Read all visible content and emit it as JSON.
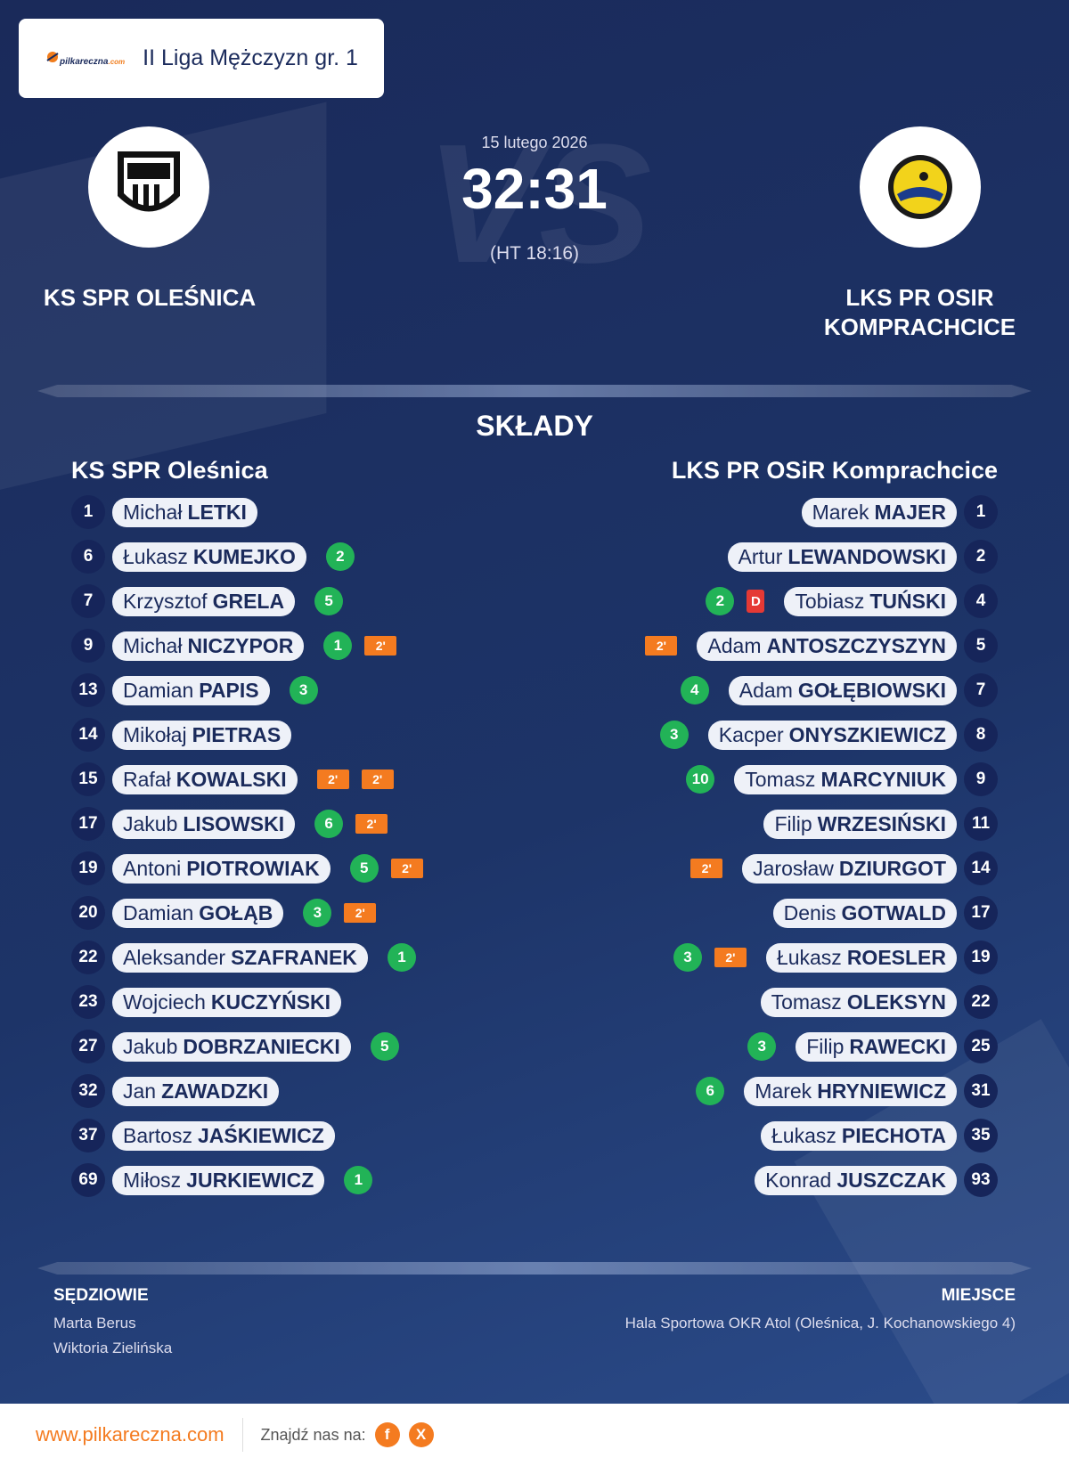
{
  "header": {
    "logo_text": "pilkareczna",
    "logo_suffix": ".com",
    "league": "II Liga Mężczyzn gr. 1"
  },
  "match": {
    "date": "15 lutego 2026",
    "score": "32:31",
    "halftime": "(HT 18:16)",
    "watermark": "VS"
  },
  "home": {
    "name": "KS SPR OLEŚNICA"
  },
  "away": {
    "name": "LKS PR OSIR KOMPRACHCICE"
  },
  "lineups": {
    "title": "SKŁADY",
    "home": {
      "team": "KS SPR Oleśnica",
      "players": [
        {
          "number": 1,
          "first": "Michał",
          "last": "LETKI"
        },
        {
          "number": 6,
          "first": "Łukasz",
          "last": "KUMEJKO",
          "goals": 2
        },
        {
          "number": 7,
          "first": "Krzysztof",
          "last": "GRELA",
          "goals": 5
        },
        {
          "number": 9,
          "first": "Michał",
          "last": "NICZYPOR",
          "goals": 1,
          "suspensions": [
            "2'"
          ]
        },
        {
          "number": 13,
          "first": "Damian",
          "last": "PAPIS",
          "goals": 3
        },
        {
          "number": 14,
          "first": "Mikołaj",
          "last": "PIETRAS"
        },
        {
          "number": 15,
          "first": "Rafał",
          "last": "KOWALSKI",
          "suspensions": [
            "2'",
            "2'"
          ]
        },
        {
          "number": 17,
          "first": "Jakub",
          "last": "LISOWSKI",
          "goals": 6,
          "suspensions": [
            "2'"
          ]
        },
        {
          "number": 19,
          "first": "Antoni",
          "last": "PIOTROWIAK",
          "goals": 5,
          "suspensions": [
            "2'"
          ]
        },
        {
          "number": 20,
          "first": "Damian",
          "last": "GOŁĄB",
          "goals": 3,
          "suspensions": [
            "2'"
          ]
        },
        {
          "number": 22,
          "first": "Aleksander",
          "last": "SZAFRANEK",
          "goals": 1
        },
        {
          "number": 23,
          "first": "Wojciech",
          "last": "KUCZYŃSKI"
        },
        {
          "number": 27,
          "first": "Jakub",
          "last": "DOBRZANIECKI",
          "goals": 5
        },
        {
          "number": 32,
          "first": "Jan",
          "last": "ZAWADZKI"
        },
        {
          "number": 37,
          "first": "Bartosz",
          "last": "JAŚKIEWICZ"
        },
        {
          "number": 69,
          "first": "Miłosz",
          "last": "JURKIEWICZ",
          "goals": 1
        }
      ]
    },
    "away": {
      "team": "LKS PR OSiR Komprachcice",
      "players": [
        {
          "number": 1,
          "first": "Marek",
          "last": "MAJER"
        },
        {
          "number": 2,
          "first": "Artur",
          "last": "LEWANDOWSKI"
        },
        {
          "number": 4,
          "first": "Tobiasz",
          "last": "TUŃSKI",
          "goals": 2,
          "disqualification": "D"
        },
        {
          "number": 5,
          "first": "Adam",
          "last": "ANTOSZCZYSZYN",
          "suspensions": [
            "2'"
          ]
        },
        {
          "number": 7,
          "first": "Adam",
          "last": "GOŁĘBIOWSKI",
          "goals": 4
        },
        {
          "number": 8,
          "first": "Kacper",
          "last": "ONYSZKIEWICZ",
          "goals": 3
        },
        {
          "number": 9,
          "first": "Tomasz",
          "last": "MARCYNIUK",
          "goals": 10
        },
        {
          "number": 11,
          "first": "Filip",
          "last": "WRZESIŃSKI"
        },
        {
          "number": 14,
          "first": "Jarosław",
          "last": "DZIURGOT",
          "suspensions": [
            "2'"
          ]
        },
        {
          "number": 17,
          "first": "Denis",
          "last": "GOTWALD"
        },
        {
          "number": 19,
          "first": "Łukasz",
          "last": "ROESLER",
          "goals": 3,
          "suspensions": [
            "2'"
          ]
        },
        {
          "number": 22,
          "first": "Tomasz",
          "last": "OLEKSYN"
        },
        {
          "number": 25,
          "first": "Filip",
          "last": "RAWECKI",
          "goals": 3
        },
        {
          "number": 31,
          "first": "Marek",
          "last": "HRYNIEWICZ",
          "goals": 6
        },
        {
          "number": 35,
          "first": "Łukasz",
          "last": "PIECHOTA"
        },
        {
          "number": 93,
          "first": "Konrad",
          "last": "JUSZCZAK"
        }
      ]
    }
  },
  "officials": {
    "label": "SĘDZIOWIE",
    "names": [
      "Marta Berus",
      "Wiktoria Zielińska"
    ]
  },
  "venue": {
    "label": "MIEJSCE",
    "text": "Hala Sportowa OKR Atol (Oleśnica, J. Kochanowskiego 4)"
  },
  "footer": {
    "url": "www.pilkareczna.com",
    "find_us": "Znajdź nas na:",
    "facebook": "f",
    "x": "X"
  }
}
